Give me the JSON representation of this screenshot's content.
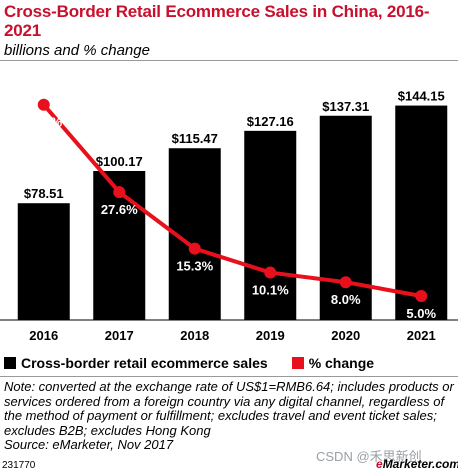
{
  "header": {
    "title": "Cross-Border Retail Ecommerce Sales in China, 2016-2021",
    "subtitle": "billions and % change"
  },
  "legend": {
    "bar_label": "Cross-border retail ecommerce sales",
    "line_label": "% change"
  },
  "note": "Note: converted at the exchange rate of US$1=RMB6.64; includes products or services ordered from a foreign country via any digital channel, regardless of the method of payment or fulfillment; excludes travel and event ticket sales; excludes B2B; excludes Hong Kong",
  "source": "Source: eMarketer, Nov 2017",
  "footer": {
    "chart_id": "231770",
    "watermark": "CSDN @禾思新创",
    "brand_e": "e",
    "brand_rest": "Marketer.com"
  },
  "colors": {
    "bar": "#000000",
    "line": "#e8101c",
    "title": "#c8102e"
  },
  "chart_data": {
    "type": "bar",
    "categories": [
      "2016",
      "2017",
      "2018",
      "2019",
      "2020",
      "2021"
    ],
    "series": [
      {
        "name": "Cross-border retail ecommerce sales",
        "type": "bar",
        "values": [
          78.51,
          100.17,
          115.47,
          127.16,
          137.31,
          144.15
        ],
        "labels": [
          "$78.51",
          "$100.17",
          "$115.47",
          "$127.16",
          "$137.31",
          "$144.15"
        ]
      },
      {
        "name": "% change",
        "type": "line",
        "values": [
          46.6,
          27.6,
          15.3,
          10.1,
          8.0,
          5.0
        ],
        "labels": [
          "46.6%",
          "27.6%",
          "15.3%",
          "10.1%",
          "8.0%",
          "5.0%"
        ]
      }
    ],
    "ylim": [
      0,
      160
    ],
    "line_ylim": [
      0,
      100
    ],
    "title": "Cross-Border Retail Ecommerce Sales in China, 2016-2021",
    "subtitle": "billions and % change",
    "grid": false,
    "legend_position": "bottom-left"
  }
}
